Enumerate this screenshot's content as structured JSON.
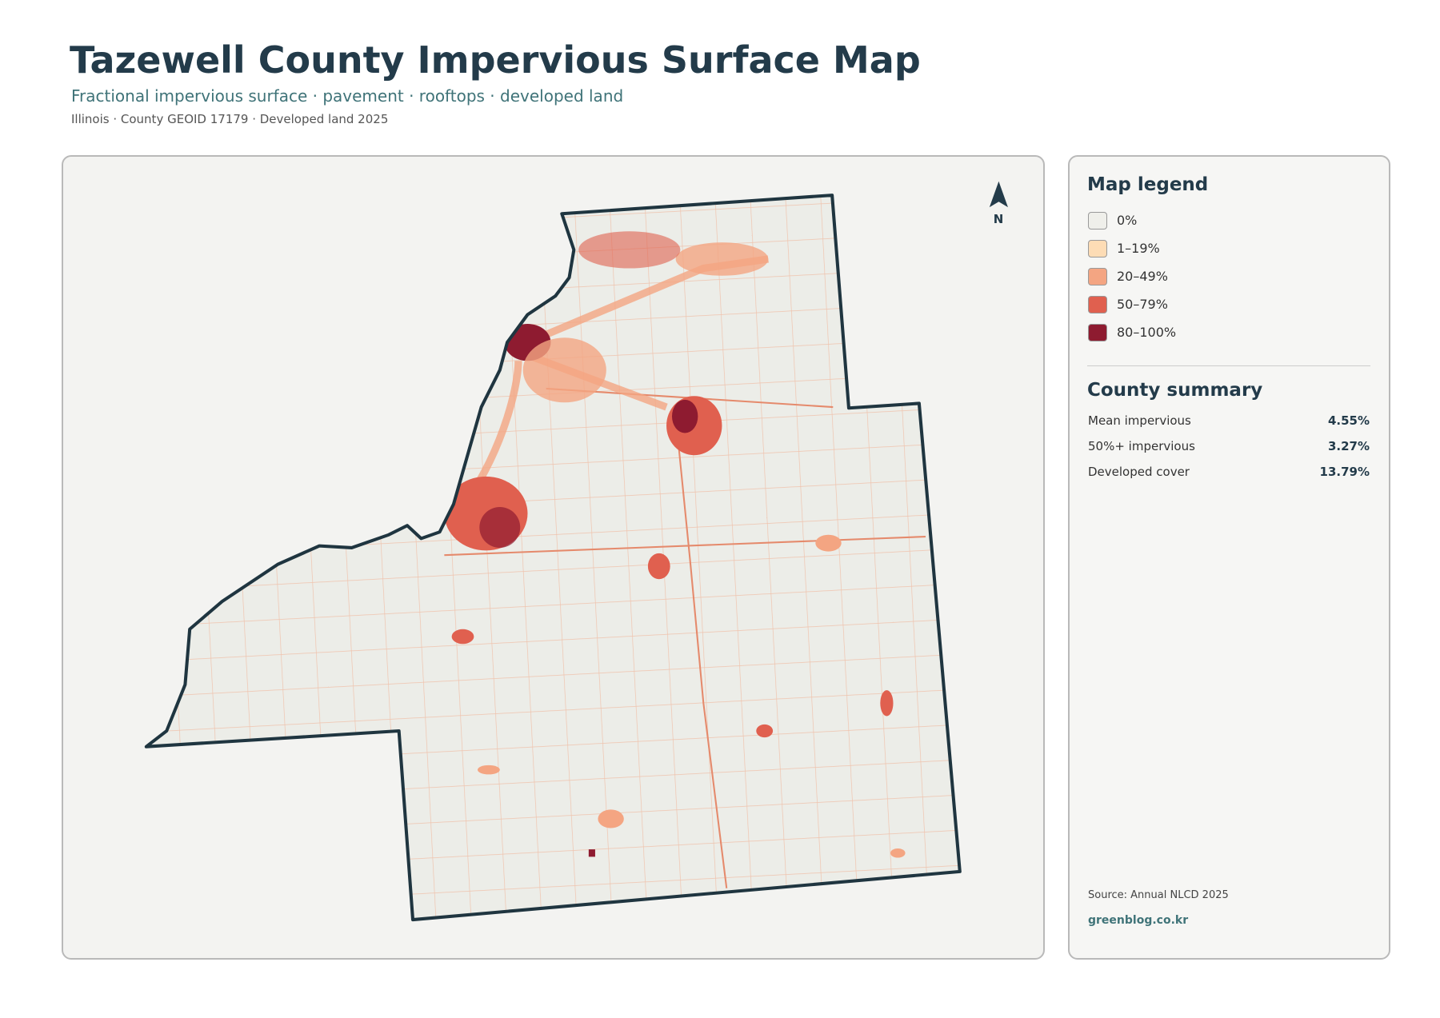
{
  "header": {
    "title": "Tazewell County Impervious Surface Map",
    "subtitle": "Fractional impervious surface · pavement · rooftops · developed land",
    "meta": "Illinois · County GEOID 17179 · Developed land 2025"
  },
  "map": {
    "north_label": "N"
  },
  "legend": {
    "title": "Map legend",
    "items": [
      {
        "label": "0%",
        "color": "#efefea"
      },
      {
        "label": "1–19%",
        "color": "#fddcb5"
      },
      {
        "label": "20–49%",
        "color": "#f4a582"
      },
      {
        "label": "50–79%",
        "color": "#e0604f"
      },
      {
        "label": "80–100%",
        "color": "#8e1b30"
      }
    ]
  },
  "summary": {
    "title": "County summary",
    "rows": [
      {
        "label": "Mean impervious",
        "value": "4.55%"
      },
      {
        "label": "50%+ impervious",
        "value": "3.27%"
      },
      {
        "label": "Developed cover",
        "value": "13.79%"
      }
    ]
  },
  "footer": {
    "source": "Source: Annual NLCD 2025",
    "site": "greenblog.co.kr"
  }
}
